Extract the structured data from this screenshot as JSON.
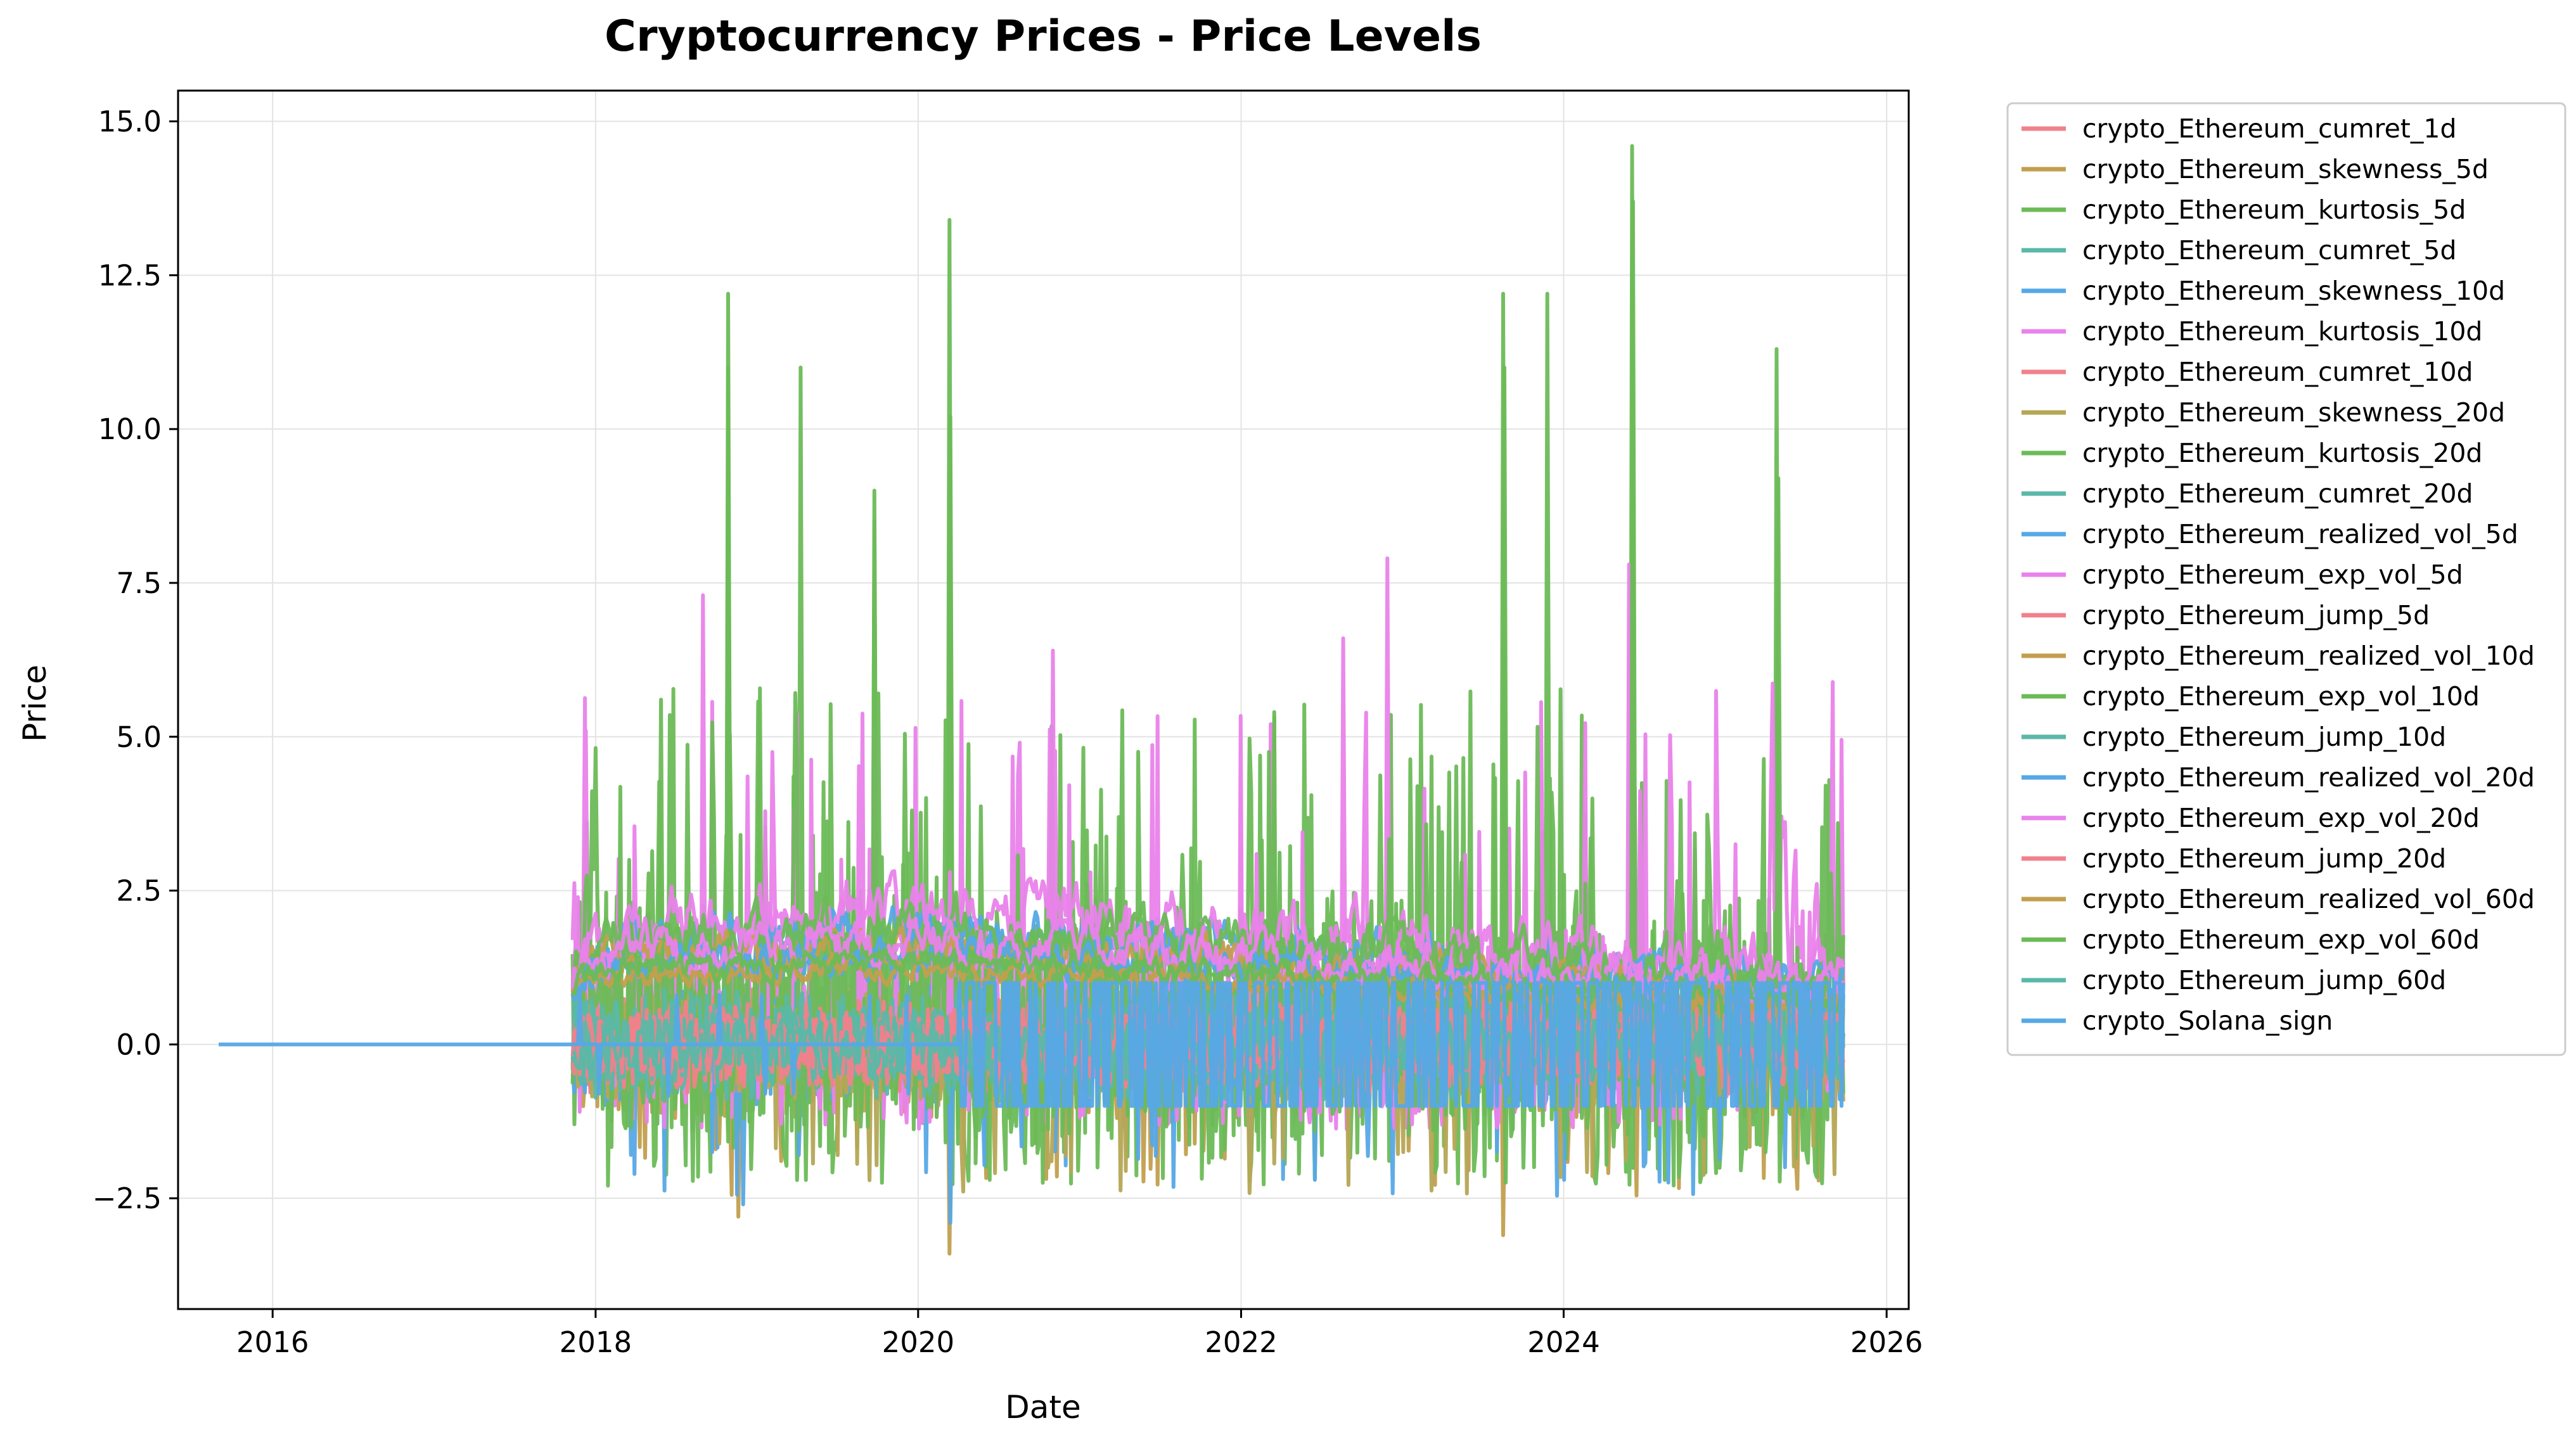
{
  "chart_data": {
    "type": "line",
    "title": "Cryptocurrency Prices - Price Levels",
    "xlabel": "Date",
    "ylabel": "Price",
    "xlim": [
      "2015-06-01",
      "2026-02-20"
    ],
    "ylim": [
      -4.3,
      15.5
    ],
    "x_ticks": [
      {
        "value": "2016-01-01",
        "label": "2016"
      },
      {
        "value": "2018-01-01",
        "label": "2018"
      },
      {
        "value": "2020-01-01",
        "label": "2020"
      },
      {
        "value": "2022-01-01",
        "label": "2022"
      },
      {
        "value": "2024-01-01",
        "label": "2024"
      },
      {
        "value": "2026-01-01",
        "label": "2026"
      }
    ],
    "y_ticks": [
      {
        "value": -2.5,
        "label": "−2.5"
      },
      {
        "value": 0.0,
        "label": "0.0"
      },
      {
        "value": 2.5,
        "label": "2.5"
      },
      {
        "value": 5.0,
        "label": "5.0"
      },
      {
        "value": 7.5,
        "label": "7.5"
      },
      {
        "value": 10.0,
        "label": "10.0"
      },
      {
        "value": 12.5,
        "label": "12.5"
      },
      {
        "value": 15.0,
        "label": "15.0"
      }
    ],
    "grid": true,
    "legend_position": "outside-right",
    "data_start": "2017-11-10",
    "data_end": "2025-09-25",
    "series": [
      {
        "name": "crypto_Ethereum_cumret_1d",
        "color": "#f0818b",
        "kind": "ret",
        "amp": 0.6,
        "seed": 11,
        "points": [
          [
            "2017-11-10",
            0.0
          ],
          [
            "2018-06-01",
            0.4
          ],
          [
            "2019-01-01",
            -0.3
          ],
          [
            "2020-03-13",
            -1.2
          ],
          [
            "2021-01-01",
            0.5
          ],
          [
            "2022-06-13",
            -0.8
          ],
          [
            "2024-01-01",
            0.3
          ],
          [
            "2025-09-25",
            -0.2
          ]
        ]
      },
      {
        "name": "crypto_Ethereum_skewness_5d",
        "color": "#c29f4e",
        "kind": "skew",
        "amp": 1.2,
        "seed": 23,
        "points": [
          [
            "2017-11-10",
            0.3
          ],
          [
            "2018-11-20",
            -2.8
          ],
          [
            "2020-03-12",
            -3.4
          ],
          [
            "2022-06-10",
            -1.9
          ],
          [
            "2023-08-17",
            -3.1
          ],
          [
            "2025-09-20",
            -2.1
          ]
        ]
      },
      {
        "name": "crypto_Ethereum_kurtosis_5d",
        "color": "#6cbb57",
        "kind": "kurt",
        "amp": 2.2,
        "seed": 37,
        "points": [
          [
            "2017-11-10",
            1.3
          ],
          [
            "2018-10-28",
            12.2
          ],
          [
            "2019-04-10",
            11.0
          ],
          [
            "2019-09-24",
            9.0
          ],
          [
            "2020-03-12",
            13.4
          ],
          [
            "2023-08-17",
            12.2
          ],
          [
            "2023-11-25",
            12.2
          ],
          [
            "2024-06-04",
            14.6
          ],
          [
            "2025-04-27",
            11.3
          ],
          [
            "2025-09-25",
            0.5
          ]
        ]
      },
      {
        "name": "crypto_Ethereum_cumret_5d",
        "color": "#5ab8a8",
        "kind": "ret",
        "amp": 0.7,
        "seed": 41,
        "points": [
          [
            "2017-11-10",
            0.1
          ],
          [
            "2018-06-01",
            0.6
          ],
          [
            "2020-03-13",
            -1.5
          ],
          [
            "2022-06-13",
            -1.0
          ],
          [
            "2025-09-25",
            0.2
          ]
        ]
      },
      {
        "name": "crypto_Ethereum_skewness_10d",
        "color": "#56a8e6",
        "kind": "skew",
        "amp": 1.0,
        "seed": 53,
        "points": [
          [
            "2017-11-10",
            0.0
          ],
          [
            "2018-12-01",
            -2.6
          ],
          [
            "2020-03-14",
            -2.9
          ],
          [
            "2025-09-25",
            -1.2
          ]
        ]
      },
      {
        "name": "crypto_Ethereum_kurtosis_10d",
        "color": "#e982ea",
        "kind": "kurt",
        "amp": 1.5,
        "seed": 61,
        "points": [
          [
            "2017-11-10",
            1.0
          ],
          [
            "2017-12-10",
            5.1
          ],
          [
            "2018-09-01",
            7.3
          ],
          [
            "2020-11-01",
            6.4
          ],
          [
            "2022-08-20",
            6.6
          ],
          [
            "2022-11-28",
            7.9
          ],
          [
            "2024-05-28",
            7.8
          ],
          [
            "2025-09-25",
            0.4
          ]
        ]
      },
      {
        "name": "crypto_Ethereum_cumret_10d",
        "color": "#f0818b",
        "kind": "ret",
        "amp": 0.8,
        "seed": 71,
        "points": [
          [
            "2017-11-10",
            0.2
          ],
          [
            "2018-03-01",
            1.0
          ],
          [
            "2020-03-13",
            -1.8
          ],
          [
            "2025-09-25",
            0.1
          ]
        ]
      },
      {
        "name": "crypto_Ethereum_skewness_20d",
        "color": "#b5a655",
        "kind": "skew",
        "amp": 0.9,
        "seed": 83,
        "points": [
          [
            "2017-11-10",
            0.1
          ],
          [
            "2019-06-01",
            -1.9
          ],
          [
            "2021-05-20",
            -2.2
          ],
          [
            "2025-09-25",
            -0.8
          ]
        ]
      },
      {
        "name": "crypto_Ethereum_kurtosis_20d",
        "color": "#6cbb57",
        "kind": "kurt",
        "amp": 1.6,
        "seed": 97,
        "points": [
          [
            "2017-11-10",
            1.2
          ],
          [
            "2018-10-28",
            11.0
          ],
          [
            "2019-09-24",
            8.5
          ],
          [
            "2020-03-14",
            10.2
          ],
          [
            "2023-08-20",
            11.0
          ],
          [
            "2024-06-06",
            13.7
          ],
          [
            "2025-05-01",
            9.2
          ],
          [
            "2025-09-25",
            0.6
          ]
        ]
      },
      {
        "name": "crypto_Ethereum_cumret_20d",
        "color": "#5ab8a8",
        "kind": "ret",
        "amp": 0.9,
        "seed": 101,
        "points": [
          [
            "2017-11-10",
            0.3
          ],
          [
            "2018-01-15",
            1.2
          ],
          [
            "2020-03-20",
            -2.0
          ],
          [
            "2025-09-25",
            0.0
          ]
        ]
      },
      {
        "name": "crypto_Ethereum_realized_vol_5d",
        "color": "#56a8e6",
        "kind": "vol",
        "amp": 0.9,
        "seed": 113,
        "points": [
          [
            "2017-11-10",
            1.0
          ],
          [
            "2018-02-05",
            2.0
          ],
          [
            "2020-03-13",
            2.4
          ],
          [
            "2025-09-25",
            0.5
          ]
        ]
      },
      {
        "name": "crypto_Ethereum_exp_vol_5d",
        "color": "#e982ea",
        "kind": "vol",
        "amp": 1.2,
        "seed": 127,
        "points": [
          [
            "2017-11-10",
            1.5
          ],
          [
            "2018-02-05",
            2.3
          ],
          [
            "2020-03-13",
            2.8
          ],
          [
            "2025-09-25",
            0.6
          ]
        ]
      },
      {
        "name": "crypto_Ethereum_jump_5d",
        "color": "#f0818b",
        "kind": "ret",
        "amp": 0.7,
        "seed": 131,
        "points": [
          [
            "2017-11-10",
            0.0
          ],
          [
            "2020-03-13",
            -1.4
          ],
          [
            "2025-09-25",
            0.0
          ]
        ]
      },
      {
        "name": "crypto_Ethereum_realized_vol_10d",
        "color": "#c29f4e",
        "kind": "vol",
        "amp": 0.7,
        "seed": 139,
        "points": [
          [
            "2017-11-10",
            1.1
          ],
          [
            "2018-02-10",
            1.8
          ],
          [
            "2020-03-20",
            2.0
          ],
          [
            "2025-09-25",
            0.4
          ]
        ]
      },
      {
        "name": "crypto_Ethereum_exp_vol_10d",
        "color": "#6cbb57",
        "kind": "vol",
        "amp": 1.0,
        "seed": 149,
        "points": [
          [
            "2017-11-10",
            1.3
          ],
          [
            "2018-02-10",
            2.1
          ],
          [
            "2020-03-20",
            2.3
          ],
          [
            "2025-09-25",
            0.5
          ]
        ]
      },
      {
        "name": "crypto_Ethereum_jump_10d",
        "color": "#5ab8a8",
        "kind": "ret",
        "amp": 0.6,
        "seed": 157,
        "points": [
          [
            "2017-11-10",
            0.0
          ],
          [
            "2020-03-20",
            -1.1
          ],
          [
            "2025-09-25",
            0.0
          ]
        ]
      },
      {
        "name": "crypto_Ethereum_realized_vol_20d",
        "color": "#56a8e6",
        "kind": "vol",
        "amp": 0.6,
        "seed": 163,
        "points": [
          [
            "2017-11-10",
            1.0
          ],
          [
            "2018-02-20",
            1.6
          ],
          [
            "2020-03-25",
            1.8
          ],
          [
            "2025-09-25",
            0.4
          ]
        ]
      },
      {
        "name": "crypto_Ethereum_exp_vol_20d",
        "color": "#e982ea",
        "kind": "vol",
        "amp": 0.8,
        "seed": 173,
        "points": [
          [
            "2017-11-10",
            1.2
          ],
          [
            "2018-02-20",
            1.9
          ],
          [
            "2020-03-25",
            2.1
          ],
          [
            "2025-09-25",
            0.5
          ]
        ]
      },
      {
        "name": "crypto_Ethereum_jump_20d",
        "color": "#f0818b",
        "kind": "ret",
        "amp": 0.5,
        "seed": 181,
        "points": [
          [
            "2017-11-10",
            0.0
          ],
          [
            "2020-03-25",
            -0.9
          ],
          [
            "2025-09-25",
            0.0
          ]
        ]
      },
      {
        "name": "crypto_Ethereum_realized_vol_60d",
        "color": "#c29f4e",
        "kind": "vol",
        "amp": 0.4,
        "seed": 191,
        "points": [
          [
            "2017-11-10",
            1.0
          ],
          [
            "2018-03-01",
            1.4
          ],
          [
            "2020-04-15",
            1.5
          ],
          [
            "2025-09-25",
            0.3
          ]
        ]
      },
      {
        "name": "crypto_Ethereum_exp_vol_60d",
        "color": "#6cbb57",
        "kind": "vol",
        "amp": 0.5,
        "seed": 197,
        "points": [
          [
            "2017-11-10",
            1.1
          ],
          [
            "2018-03-01",
            1.6
          ],
          [
            "2020-04-15",
            1.7
          ],
          [
            "2025-09-25",
            0.4
          ]
        ]
      },
      {
        "name": "crypto_Ethereum_jump_60d",
        "color": "#5ab8a8",
        "kind": "ret",
        "amp": 0.4,
        "seed": 199,
        "points": [
          [
            "2017-11-10",
            0.0
          ],
          [
            "2020-04-15",
            -0.6
          ],
          [
            "2025-09-25",
            0.0
          ]
        ]
      },
      {
        "name": "crypto_Solana_sign",
        "color": "#56a8e6",
        "kind": "sign",
        "amp": 1.0,
        "seed": 211,
        "flat_from": "2015-09-01",
        "flat_to": "2017-11-10",
        "flat_value": 0.0,
        "points": [
          [
            "2015-09-01",
            0.0
          ],
          [
            "2017-11-10",
            0.0
          ],
          [
            "2020-04-01",
            1.0
          ],
          [
            "2020-04-02",
            -1.0
          ],
          [
            "2025-09-25",
            1.0
          ]
        ]
      }
    ]
  }
}
